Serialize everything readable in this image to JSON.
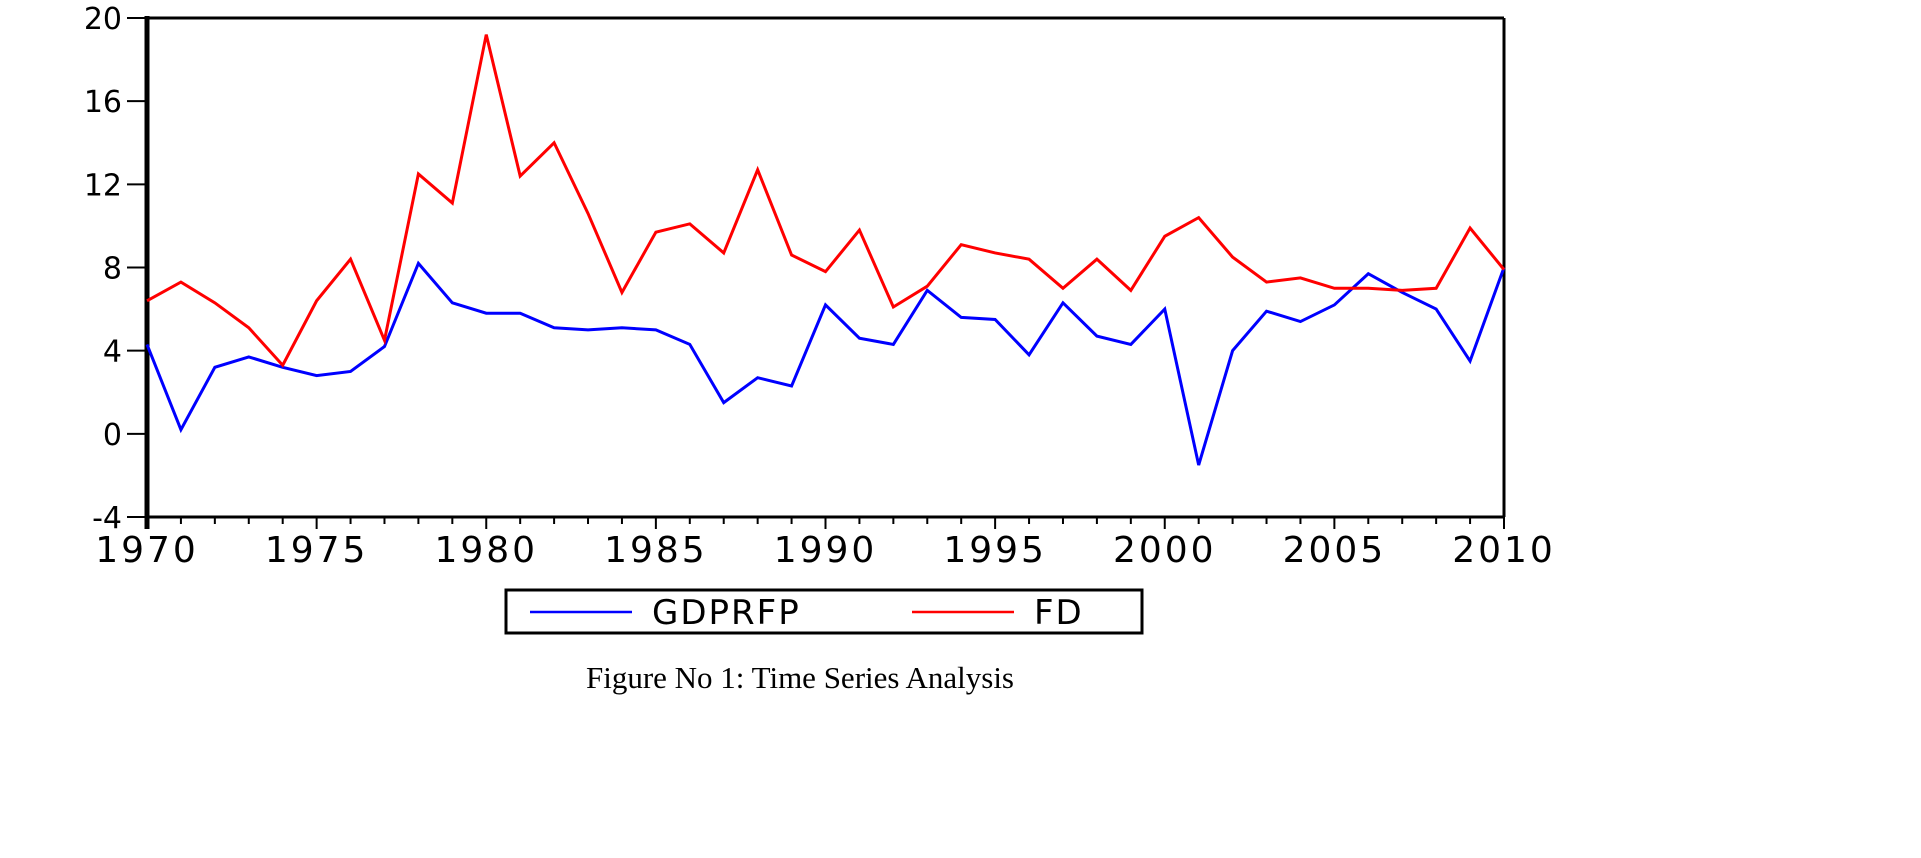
{
  "caption": "Figure No 1: Time Series Analysis",
  "chart_data": {
    "type": "line",
    "title": "",
    "xlabel": "",
    "ylabel": "",
    "x": [
      1970,
      1971,
      1972,
      1973,
      1974,
      1975,
      1976,
      1977,
      1978,
      1979,
      1980,
      1981,
      1982,
      1983,
      1984,
      1985,
      1986,
      1987,
      1988,
      1989,
      1990,
      1991,
      1992,
      1993,
      1994,
      1995,
      1996,
      1997,
      1998,
      1999,
      2000,
      2001,
      2002,
      2003,
      2004,
      2005,
      2006,
      2007,
      2008,
      2009,
      2010
    ],
    "xlim": [
      1970,
      2010
    ],
    "ylim": [
      -4,
      20
    ],
    "x_ticks": [
      "1970",
      "1975",
      "1980",
      "1985",
      "1990",
      "1995",
      "2000",
      "2005",
      "2010"
    ],
    "y_ticks": [
      "-4",
      "0",
      "4",
      "8",
      "12",
      "16",
      "20"
    ],
    "grid": false,
    "legend": "bottom",
    "series": [
      {
        "name": "GDPRFP",
        "color": "#0000ff",
        "values": [
          4.3,
          0.2,
          3.2,
          3.7,
          3.2,
          2.8,
          3.0,
          4.2,
          8.2,
          6.3,
          5.8,
          5.8,
          5.1,
          5.0,
          5.1,
          5.0,
          4.3,
          1.5,
          2.7,
          2.3,
          6.2,
          4.6,
          4.3,
          6.9,
          5.6,
          5.5,
          3.8,
          6.3,
          4.7,
          4.3,
          6.0,
          -1.5,
          4.0,
          5.9,
          5.4,
          6.2,
          7.7,
          6.8,
          6.0,
          3.5,
          8.0
        ]
      },
      {
        "name": "FD",
        "color": "#ff0000",
        "values": [
          6.4,
          7.3,
          6.3,
          5.1,
          3.3,
          6.4,
          8.4,
          4.5,
          12.5,
          11.1,
          19.2,
          12.4,
          14.0,
          10.6,
          6.8,
          9.7,
          10.1,
          8.7,
          12.7,
          8.6,
          7.8,
          9.8,
          6.1,
          7.1,
          9.1,
          8.7,
          8.4,
          7.0,
          8.4,
          6.9,
          9.5,
          10.4,
          8.5,
          7.3,
          7.5,
          7.0,
          7.0,
          6.9,
          7.0,
          9.9,
          7.9
        ]
      }
    ]
  }
}
